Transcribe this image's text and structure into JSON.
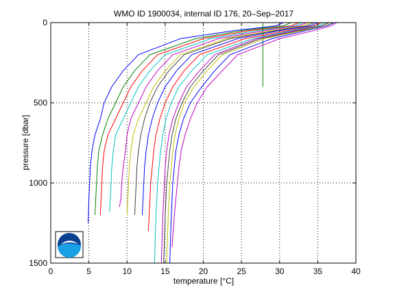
{
  "chart_data": {
    "type": "line",
    "title": "WMO ID 1900034, internal ID 176, 20–Sep–2017",
    "xlabel": "temperature [°C]",
    "ylabel": "pressure [dbar]",
    "xlim": [
      0,
      40
    ],
    "ylim": [
      0,
      1500
    ],
    "y_reversed": true,
    "grid": true,
    "grid_style": "dotted",
    "x_ticks": [
      "0",
      "5",
      "10",
      "15",
      "20",
      "25",
      "30",
      "35",
      "40"
    ],
    "y_ticks": [
      "0",
      "500",
      "1000",
      "1500"
    ],
    "x_tick_values": [
      0,
      5,
      10,
      15,
      20,
      25,
      30,
      35,
      40
    ],
    "y_tick_values": [
      0,
      500,
      1000,
      1500
    ],
    "series": [
      {
        "color": "#0000ff",
        "points": [
          [
            30.5,
            0
          ],
          [
            29.5,
            20
          ],
          [
            24,
            50
          ],
          [
            17,
            100
          ],
          [
            11.5,
            200
          ],
          [
            9.5,
            300
          ],
          [
            8,
            400
          ],
          [
            7,
            500
          ],
          [
            6.5,
            600
          ],
          [
            5.8,
            700
          ],
          [
            5.4,
            800
          ],
          [
            5.2,
            900
          ],
          [
            5.1,
            1000
          ],
          [
            5,
            1100
          ],
          [
            4.9,
            1250
          ]
        ]
      },
      {
        "color": "#008000",
        "points": [
          [
            31.5,
            0
          ],
          [
            30.5,
            20
          ],
          [
            25,
            50
          ],
          [
            19,
            100
          ],
          [
            13,
            200
          ],
          [
            11,
            300
          ],
          [
            9.5,
            400
          ],
          [
            8.5,
            500
          ],
          [
            7.5,
            600
          ],
          [
            6.8,
            700
          ],
          [
            6.3,
            800
          ],
          [
            6.1,
            900
          ],
          [
            6,
            1000
          ],
          [
            5.9,
            1100
          ],
          [
            5.8,
            1200
          ]
        ]
      },
      {
        "color": "#ff0000",
        "points": [
          [
            32.5,
            0
          ],
          [
            31.5,
            20
          ],
          [
            26,
            50
          ],
          [
            20,
            100
          ],
          [
            14,
            200
          ],
          [
            12,
            300
          ],
          [
            10.5,
            400
          ],
          [
            9.5,
            500
          ],
          [
            8.5,
            600
          ],
          [
            7.5,
            700
          ],
          [
            7,
            800
          ],
          [
            6.8,
            900
          ],
          [
            6.7,
            1000
          ],
          [
            6.6,
            1100
          ],
          [
            6.5,
            1200
          ]
        ]
      },
      {
        "color": "#00bfbf",
        "points": [
          [
            33,
            0
          ],
          [
            32,
            20
          ],
          [
            27,
            50
          ],
          [
            21,
            100
          ],
          [
            15,
            200
          ],
          [
            13,
            300
          ],
          [
            11.5,
            400
          ],
          [
            10.5,
            500
          ],
          [
            9.5,
            600
          ],
          [
            8.5,
            700
          ],
          [
            8.2,
            800
          ],
          [
            8,
            900
          ],
          [
            7.9,
            1000
          ],
          [
            7.8,
            1100
          ],
          [
            7.7,
            1180
          ]
        ]
      },
      {
        "color": "#bf00bf",
        "points": [
          [
            33.5,
            0
          ],
          [
            32.5,
            20
          ],
          [
            28,
            50
          ],
          [
            22,
            100
          ],
          [
            16,
            200
          ],
          [
            14,
            300
          ],
          [
            12.5,
            400
          ],
          [
            11.5,
            500
          ],
          [
            10.5,
            600
          ],
          [
            10,
            700
          ],
          [
            9.8,
            800
          ],
          [
            9.5,
            900
          ],
          [
            9.3,
            1000
          ],
          [
            9.2,
            1100
          ],
          [
            9,
            1150
          ]
        ]
      },
      {
        "color": "#bfbf00",
        "points": [
          [
            34,
            0
          ],
          [
            33,
            20
          ],
          [
            29,
            50
          ],
          [
            23,
            100
          ],
          [
            17,
            200
          ],
          [
            15,
            300
          ],
          [
            13.5,
            400
          ],
          [
            12.5,
            500
          ],
          [
            11.5,
            600
          ],
          [
            10.8,
            700
          ],
          [
            10.5,
            800
          ],
          [
            10.3,
            900
          ],
          [
            10.2,
            1000
          ],
          [
            10.1,
            1100
          ],
          [
            10,
            1200
          ]
        ]
      },
      {
        "color": "#404040",
        "points": [
          [
            34.5,
            0
          ],
          [
            33.5,
            20
          ],
          [
            29.5,
            50
          ],
          [
            23.5,
            100
          ],
          [
            17.5,
            200
          ],
          [
            15.5,
            300
          ],
          [
            14,
            400
          ],
          [
            13,
            500
          ],
          [
            12.3,
            600
          ],
          [
            11.8,
            700
          ],
          [
            11.5,
            800
          ],
          [
            11.3,
            900
          ],
          [
            11.2,
            1000
          ],
          [
            11.1,
            1100
          ],
          [
            11,
            1200
          ]
        ]
      },
      {
        "color": "#0000ff",
        "points": [
          [
            35,
            0
          ],
          [
            34,
            20
          ],
          [
            30,
            50
          ],
          [
            24.5,
            100
          ],
          [
            18.5,
            200
          ],
          [
            16.5,
            300
          ],
          [
            15,
            400
          ],
          [
            14,
            500
          ],
          [
            13.3,
            600
          ],
          [
            12.8,
            700
          ],
          [
            12.5,
            800
          ],
          [
            12.3,
            900
          ],
          [
            12.2,
            1000
          ],
          [
            12.1,
            1100
          ],
          [
            12,
            1200
          ]
        ]
      },
      {
        "color": "#008000",
        "points": [
          [
            27.8,
            0
          ],
          [
            27.8,
            400
          ]
        ]
      },
      {
        "color": "#ff0000",
        "points": [
          [
            35.5,
            0
          ],
          [
            34.5,
            20
          ],
          [
            31,
            50
          ],
          [
            25.5,
            100
          ],
          [
            19.5,
            200
          ],
          [
            17.5,
            300
          ],
          [
            16,
            400
          ],
          [
            15,
            500
          ],
          [
            14.3,
            600
          ],
          [
            13.8,
            700
          ],
          [
            13.5,
            800
          ],
          [
            13.3,
            900
          ],
          [
            13.1,
            1000
          ],
          [
            13,
            1100
          ],
          [
            12.8,
            1300
          ]
        ]
      },
      {
        "color": "#00bfbf",
        "points": [
          [
            36,
            0
          ],
          [
            35,
            20
          ],
          [
            31.5,
            50
          ],
          [
            26.5,
            100
          ],
          [
            20.5,
            200
          ],
          [
            18.5,
            300
          ],
          [
            16.8,
            400
          ],
          [
            15.8,
            500
          ],
          [
            15.1,
            600
          ],
          [
            14.7,
            700
          ],
          [
            14.4,
            800
          ],
          [
            14.2,
            900
          ],
          [
            14,
            1000
          ],
          [
            13.8,
            1200
          ],
          [
            13.6,
            1500
          ]
        ]
      },
      {
        "color": "#bf00bf",
        "points": [
          [
            36.5,
            0
          ],
          [
            35.5,
            20
          ],
          [
            32,
            50
          ],
          [
            27,
            100
          ],
          [
            21.5,
            200
          ],
          [
            19.5,
            300
          ],
          [
            17.8,
            400
          ],
          [
            16.8,
            500
          ],
          [
            16,
            600
          ],
          [
            15.5,
            700
          ],
          [
            15.2,
            800
          ],
          [
            15,
            900
          ],
          [
            14.9,
            1000
          ],
          [
            14.7,
            1200
          ],
          [
            14.5,
            1500
          ]
        ]
      },
      {
        "color": "#bfbf00",
        "points": [
          [
            37,
            0
          ],
          [
            36,
            20
          ],
          [
            33,
            50
          ],
          [
            28,
            100
          ],
          [
            22.5,
            200
          ],
          [
            20.5,
            300
          ],
          [
            18.8,
            400
          ],
          [
            17.5,
            500
          ],
          [
            16.8,
            600
          ],
          [
            16.3,
            700
          ],
          [
            16,
            800
          ],
          [
            15.8,
            900
          ],
          [
            15.6,
            1000
          ],
          [
            15.4,
            1200
          ],
          [
            15.2,
            1500
          ]
        ]
      },
      {
        "color": "#404040",
        "points": [
          [
            36.5,
            0
          ],
          [
            35.5,
            20
          ],
          [
            32.5,
            50
          ],
          [
            27.5,
            100
          ],
          [
            22,
            200
          ],
          [
            20,
            300
          ],
          [
            18.3,
            400
          ],
          [
            17.2,
            500
          ],
          [
            16.4,
            600
          ],
          [
            15.9,
            700
          ],
          [
            15.6,
            800
          ],
          [
            15.4,
            900
          ],
          [
            15.2,
            1000
          ],
          [
            15,
            1200
          ],
          [
            14.8,
            1500
          ]
        ]
      },
      {
        "color": "#0000ff",
        "points": [
          [
            37.2,
            0
          ],
          [
            36.2,
            20
          ],
          [
            33.5,
            50
          ],
          [
            29,
            100
          ],
          [
            23.5,
            200
          ],
          [
            21.5,
            300
          ],
          [
            19.8,
            400
          ],
          [
            18.3,
            500
          ],
          [
            17.4,
            600
          ],
          [
            16.8,
            700
          ],
          [
            16.4,
            800
          ],
          [
            16.2,
            900
          ],
          [
            16,
            1000
          ],
          [
            15.8,
            1200
          ],
          [
            15.6,
            1500
          ]
        ]
      },
      {
        "color": "#bf00bf",
        "points": [
          [
            37.5,
            0
          ],
          [
            36.8,
            20
          ],
          [
            34.5,
            50
          ],
          [
            30,
            100
          ],
          [
            24.5,
            200
          ],
          [
            22.5,
            300
          ],
          [
            20.5,
            400
          ],
          [
            19.2,
            500
          ],
          [
            18.3,
            600
          ],
          [
            17.6,
            700
          ],
          [
            17.1,
            800
          ],
          [
            16.8,
            900
          ],
          [
            16.6,
            1000
          ],
          [
            16.2,
            1200
          ],
          [
            15.9,
            1400
          ]
        ]
      }
    ]
  },
  "logo": {
    "name": "noaa-logo",
    "text": "NOAA",
    "colors": {
      "sky": "#0b3f8f",
      "water": "#1aa0e6",
      "bird": "#ffffff"
    }
  },
  "colors": {
    "axis": "#000000",
    "grid": "#000000",
    "background": "#ffffff"
  }
}
